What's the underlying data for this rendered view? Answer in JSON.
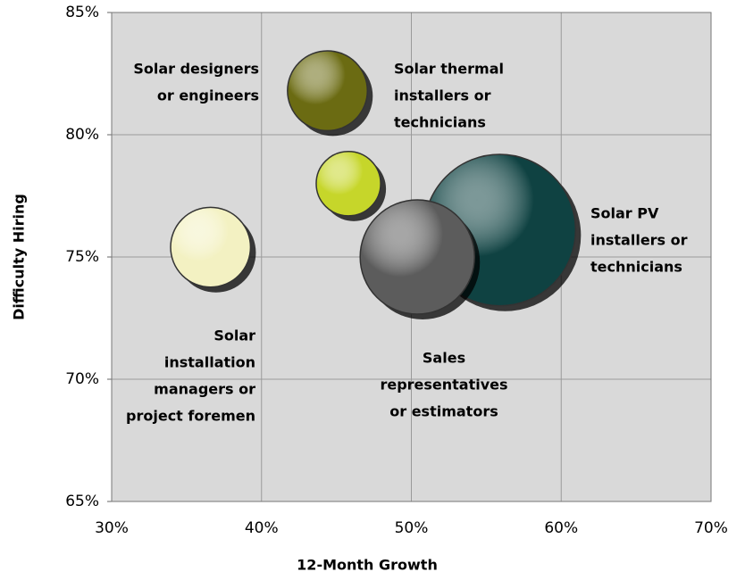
{
  "chart_data": {
    "type": "bubble",
    "xlabel": "12-Month Growth",
    "ylabel": "Difficulty Hiring",
    "labels": [
      [
        "Solar designers",
        "or engineers"
      ],
      [
        "Solar thermal",
        "installers or",
        "technicians"
      ],
      [
        "Solar PV",
        "installers or",
        "technicians"
      ],
      [
        "Sales",
        "representatives",
        "or estimators"
      ],
      [
        "Solar",
        "installation",
        "managers or",
        "project foremen"
      ]
    ],
    "x": [
      44.4,
      45.8,
      55.9,
      50.4,
      36.6
    ],
    "y": [
      81.8,
      78.0,
      76.1,
      75.0,
      75.4
    ],
    "sizes": [
      20,
      13,
      72,
      41,
      20
    ],
    "colors": [
      "#6b6b12",
      "#c6d62a",
      "#0f4242",
      "#5c5c5c",
      "#f3f1c2"
    ],
    "xlim": [
      30,
      70
    ],
    "xticks": [
      {
        "value": 30,
        "label": "30%"
      },
      {
        "value": 40,
        "label": "40%"
      },
      {
        "value": 50,
        "label": "50%"
      },
      {
        "value": 60,
        "label": "60%"
      },
      {
        "value": 70,
        "label": "70%"
      }
    ],
    "ylim": [
      65,
      85
    ],
    "yticks": [
      {
        "value": 65,
        "label": "65%"
      },
      {
        "value": 70,
        "label": "70%"
      },
      {
        "value": 75,
        "label": "75%"
      },
      {
        "value": 80,
        "label": "80%"
      },
      {
        "value": 85,
        "label": "85%"
      }
    ],
    "grid": true
  }
}
